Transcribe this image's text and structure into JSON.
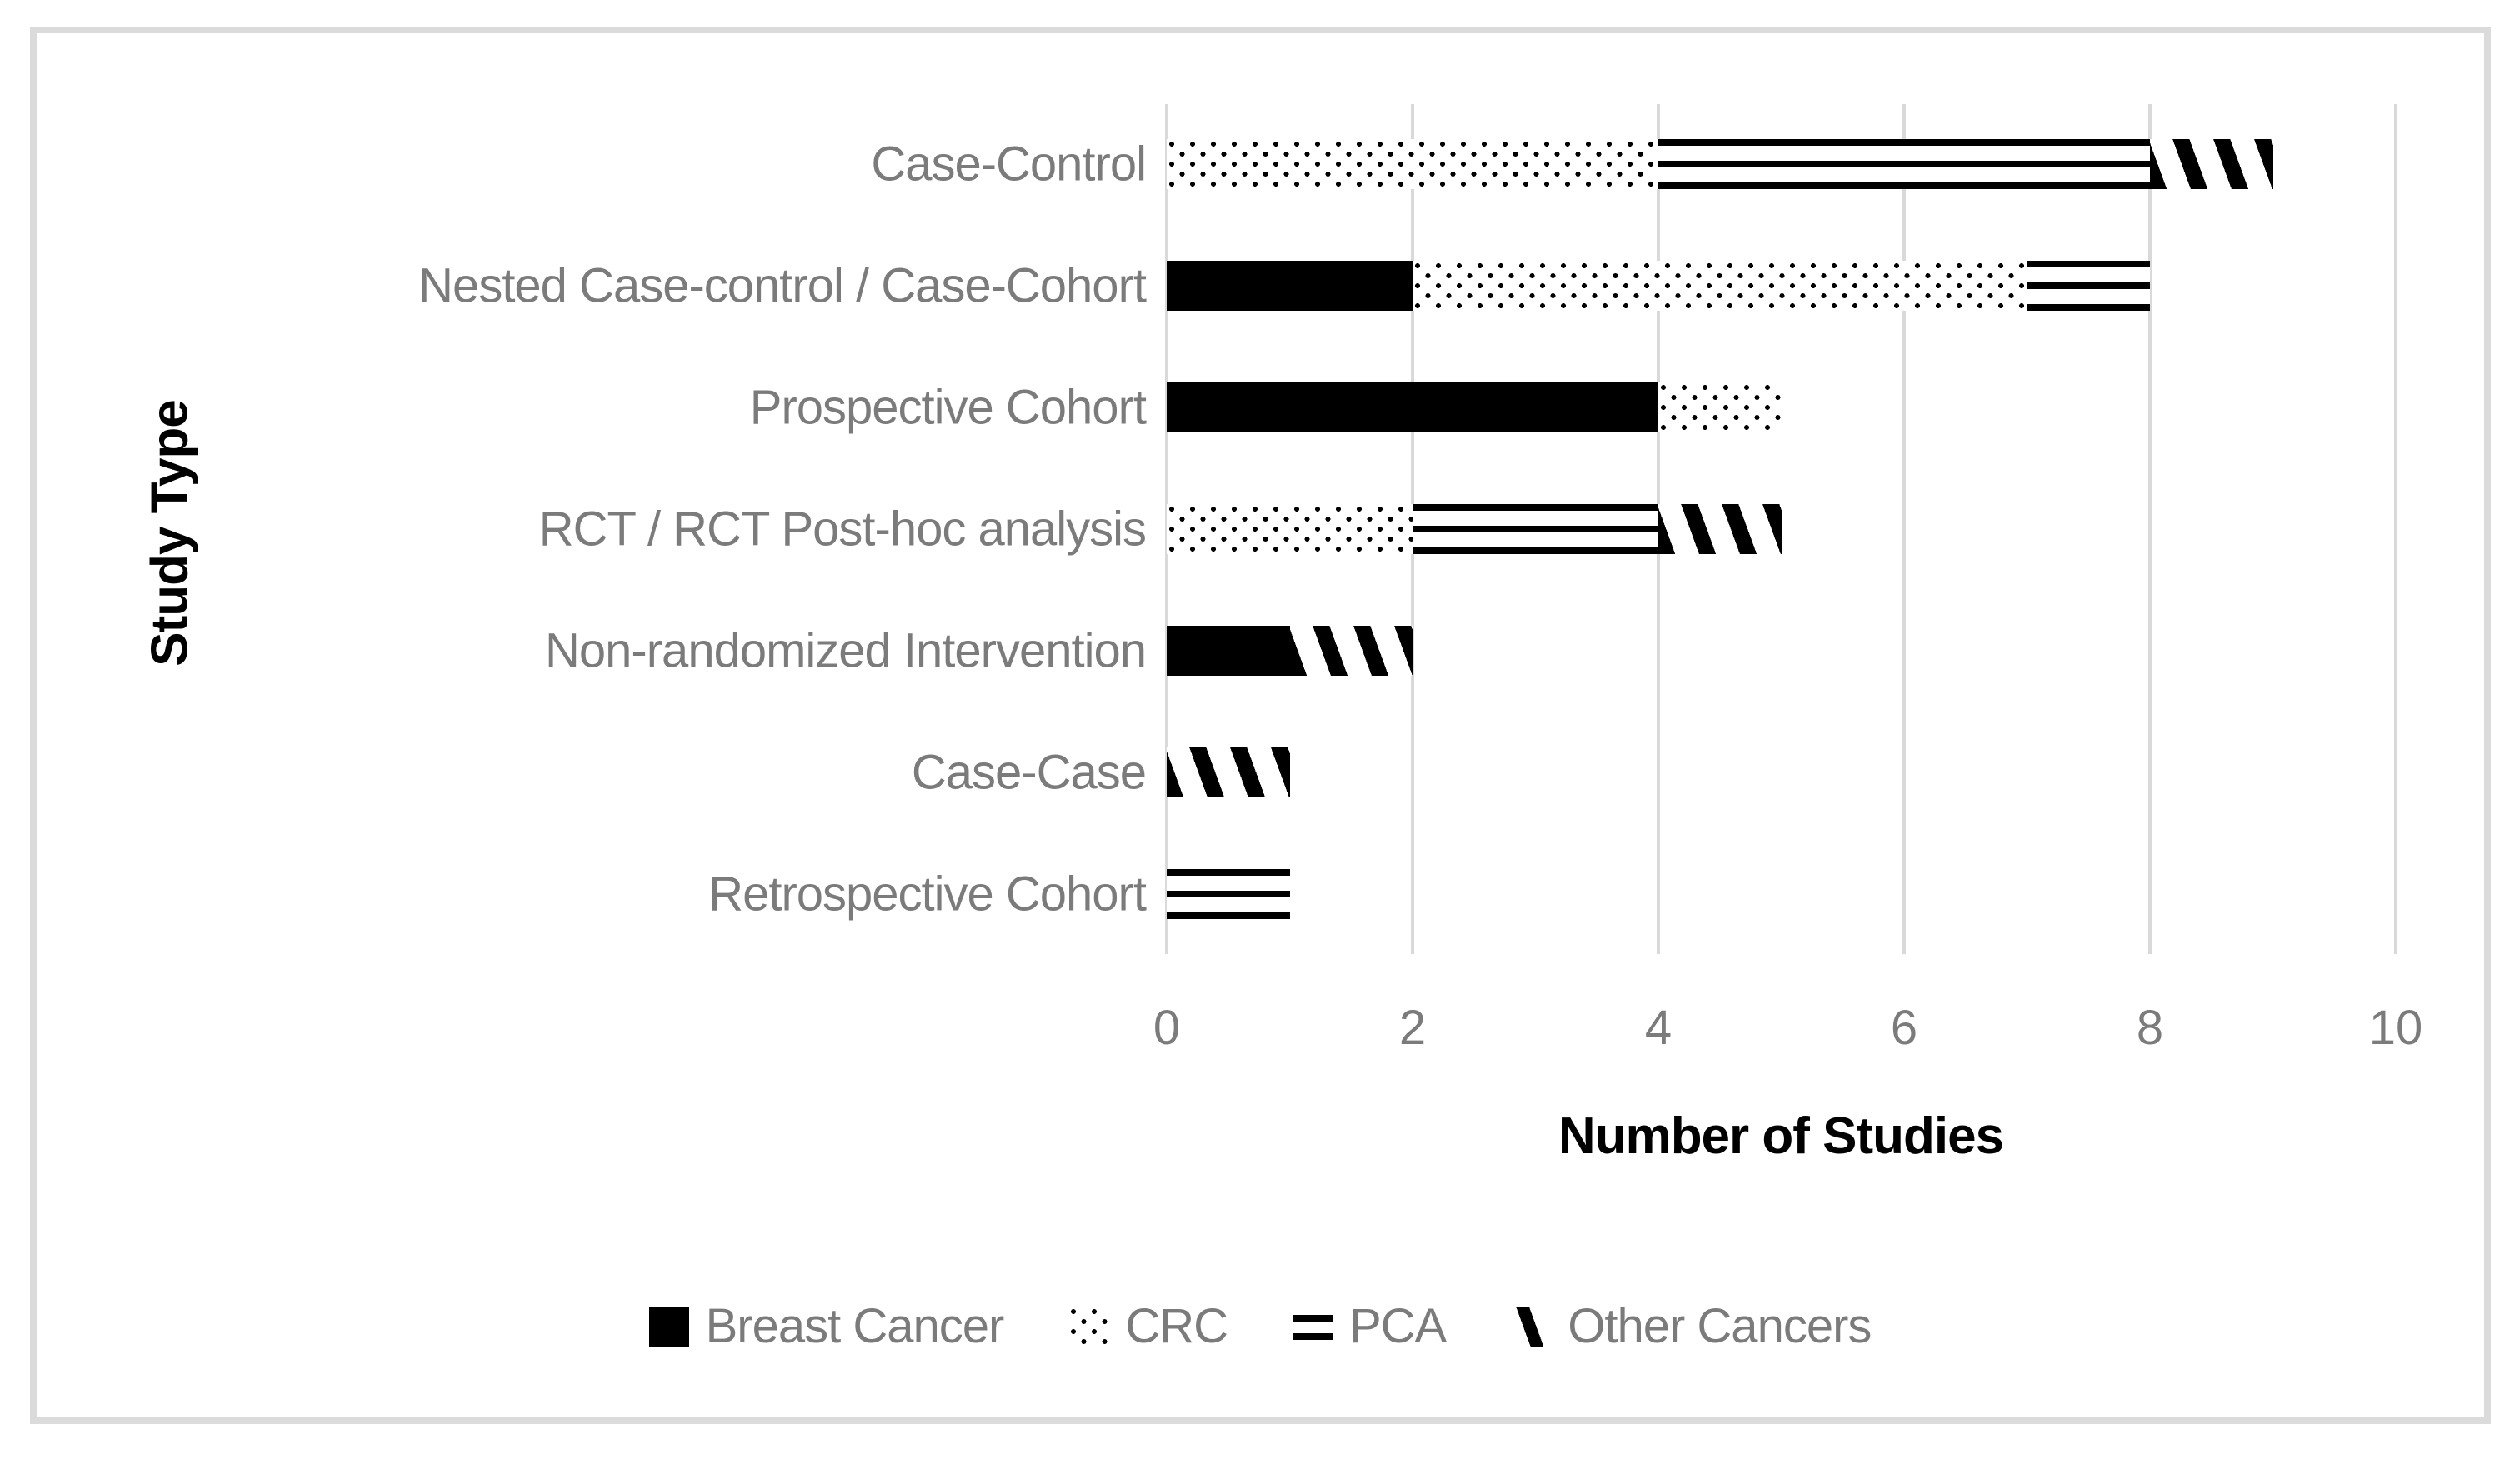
{
  "figure": {
    "background": "#ffffff",
    "frame_border_color": "#dbdbdb",
    "label_color": "#7b7b7b",
    "gridline_color": "#d9d9d9",
    "series_foreground": "#000000"
  },
  "chart_data": {
    "type": "bar",
    "orientation": "horizontal",
    "stacked": true,
    "title": "",
    "xlabel": "Number of Studies",
    "ylabel": "Study Type",
    "categories": [
      "Case-Control",
      "Nested Case-control / Case-Cohort",
      "Prospective Cohort",
      "RCT / RCT Post-hoc analysis",
      "Non-randomized Intervention",
      "Case-Case",
      "Retrospective Cohort"
    ],
    "series": [
      {
        "name": "Breast Cancer",
        "pattern": "solid",
        "values": [
          0,
          2,
          4,
          0,
          1,
          0,
          0
        ]
      },
      {
        "name": "CRC",
        "pattern": "dots",
        "values": [
          4,
          5,
          1,
          2,
          0,
          0,
          0
        ]
      },
      {
        "name": "PCA",
        "pattern": "horizontal-lines",
        "values": [
          4,
          1,
          0,
          2,
          0,
          0,
          1
        ]
      },
      {
        "name": "Other Cancers",
        "pattern": "diagonal-stripes",
        "values": [
          1,
          0,
          0,
          1,
          1,
          1,
          0
        ]
      }
    ],
    "totals_per_category": [
      9,
      8,
      5,
      5,
      2,
      1,
      1
    ],
    "xlim": [
      0,
      10
    ],
    "xticks": [
      "0",
      "2",
      "4",
      "6",
      "8",
      "10"
    ],
    "gridlines": "vertical",
    "legend_position": "bottom-center"
  }
}
